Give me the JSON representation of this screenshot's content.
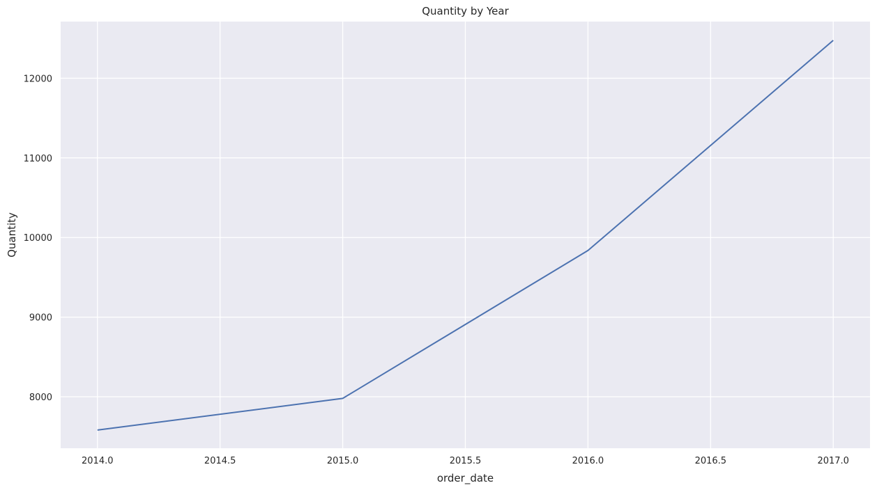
{
  "chart_data": {
    "type": "line",
    "title": "Quantity by Year",
    "xlabel": "order_date",
    "ylabel": "Quantity",
    "x": [
      2014,
      2015,
      2016,
      2017
    ],
    "series": [
      {
        "values": [
          7581,
          7979,
          9837,
          12476
        ],
        "color": "#4c72b0"
      }
    ],
    "xlim": [
      2013.85,
      2017.15
    ],
    "ylim": [
      7353,
      12712
    ],
    "xticks": [
      2014.0,
      2014.5,
      2015.0,
      2015.5,
      2016.0,
      2016.5,
      2017.0
    ],
    "xtick_labels": [
      "2014.0",
      "2014.5",
      "2015.0",
      "2015.5",
      "2016.0",
      "2016.5",
      "2017.0"
    ],
    "yticks": [
      8000,
      9000,
      10000,
      11000,
      12000
    ],
    "ytick_labels": [
      "8000",
      "9000",
      "10000",
      "11000",
      "12000"
    ],
    "grid": true,
    "plot_background": "#eaeaf2",
    "grid_color": "#ffffff"
  }
}
